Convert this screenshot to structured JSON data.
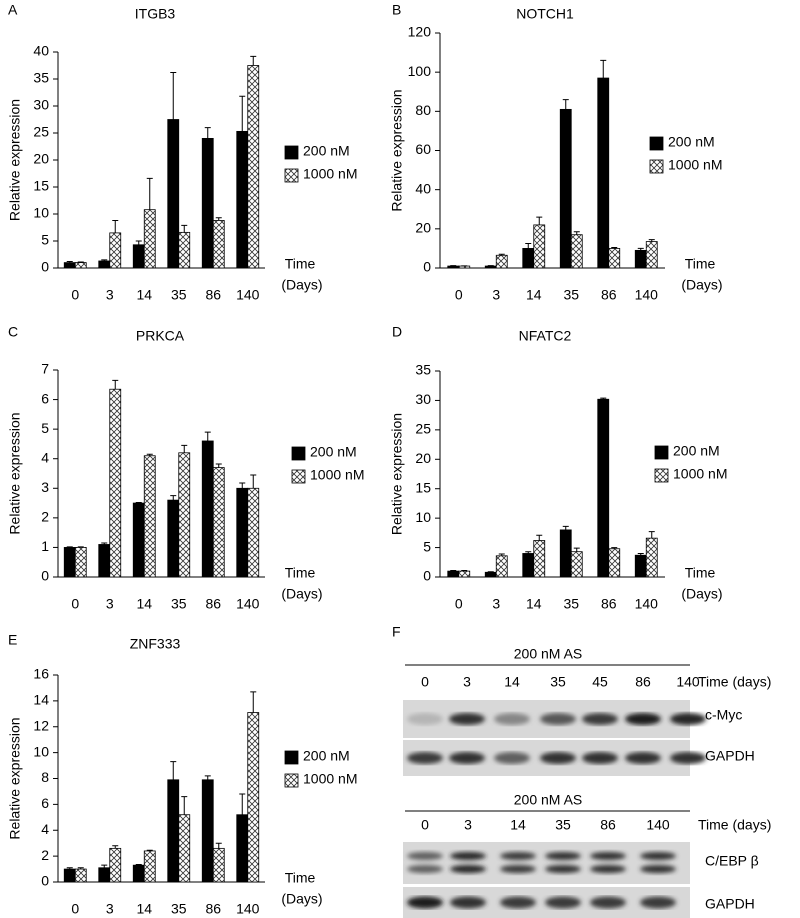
{
  "chart_data": [
    {
      "type": "bar",
      "panel": "A",
      "title": "ITGB3",
      "ylabel": "Relative expression",
      "xlabel": [
        "Time",
        "(Days)"
      ],
      "categories": [
        "0",
        "3",
        "14",
        "35",
        "86",
        "140"
      ],
      "series": [
        {
          "name": "200 nM",
          "color": "#000000",
          "values": [
            1.0,
            1.3,
            4.3,
            27.5,
            24.0,
            25.3
          ],
          "errors": [
            0.2,
            0.2,
            0.7,
            8.7,
            2.0,
            6.5
          ]
        },
        {
          "name": "1000 nM",
          "color": "#ffffff",
          "pattern": "crosshatch",
          "values": [
            1.0,
            6.5,
            10.8,
            6.6,
            8.8,
            37.5
          ],
          "errors": [
            0.1,
            2.3,
            5.8,
            1.3,
            0.5,
            1.7
          ]
        }
      ],
      "ylim": [
        0,
        40
      ],
      "yticks": [
        0,
        5,
        10,
        15,
        20,
        25,
        30,
        35,
        40
      ],
      "legend": "right"
    },
    {
      "type": "bar",
      "panel": "B",
      "title": "NOTCH1",
      "ylabel": "Relative expression",
      "xlabel": [
        "Time",
        "(Days)"
      ],
      "categories": [
        "0",
        "3",
        "14",
        "35",
        "86",
        "140"
      ],
      "series": [
        {
          "name": "200 nM",
          "color": "#000000",
          "values": [
            1,
            1,
            10,
            81,
            97,
            9
          ],
          "errors": [
            0.2,
            0.2,
            2.5,
            5,
            9,
            1
          ]
        },
        {
          "name": "1000 nM",
          "color": "#ffffff",
          "pattern": "crosshatch",
          "values": [
            1,
            6.5,
            22,
            17,
            10,
            13.5
          ],
          "errors": [
            0.1,
            0.5,
            4,
            1.5,
            0.5,
            1
          ]
        }
      ],
      "ylim": [
        0,
        120
      ],
      "yticks": [
        0,
        20,
        40,
        60,
        80,
        100,
        120
      ],
      "legend": "right"
    },
    {
      "type": "bar",
      "panel": "C",
      "title": "PRKCA",
      "ylabel": "Relative expression",
      "xlabel": [
        "Time",
        "(Days)"
      ],
      "categories": [
        "0",
        "3",
        "14",
        "35",
        "86",
        "140"
      ],
      "series": [
        {
          "name": "200 nM",
          "color": "#000000",
          "values": [
            1.0,
            1.1,
            2.5,
            2.6,
            4.6,
            3.0
          ],
          "errors": [
            0.02,
            0.05,
            0.02,
            0.15,
            0.3,
            0.18
          ]
        },
        {
          "name": "1000 nM",
          "color": "#ffffff",
          "pattern": "crosshatch",
          "values": [
            1.0,
            6.35,
            4.1,
            4.2,
            3.7,
            3.0
          ],
          "errors": [
            0.02,
            0.3,
            0.05,
            0.25,
            0.12,
            0.45
          ]
        }
      ],
      "ylim": [
        0,
        7
      ],
      "yticks": [
        0,
        1,
        2,
        3,
        4,
        5,
        6,
        7
      ],
      "legend": "right"
    },
    {
      "type": "bar",
      "panel": "D",
      "title": "NFATC2",
      "ylabel": "Relative expression",
      "xlabel": [
        "Time",
        "(Days)"
      ],
      "categories": [
        "0",
        "3",
        "14",
        "35",
        "86",
        "140"
      ],
      "series": [
        {
          "name": "200 nM",
          "color": "#000000",
          "values": [
            1.0,
            0.8,
            4.0,
            8.0,
            30.2,
            3.7
          ],
          "errors": [
            0.1,
            0.1,
            0.3,
            0.6,
            0.2,
            0.3
          ]
        },
        {
          "name": "1000 nM",
          "color": "#ffffff",
          "pattern": "crosshatch",
          "values": [
            1.0,
            3.6,
            6.2,
            4.3,
            4.8,
            6.6
          ],
          "errors": [
            0.1,
            0.3,
            0.9,
            0.6,
            0.2,
            1.1
          ]
        }
      ],
      "ylim": [
        0,
        35
      ],
      "yticks": [
        0,
        5,
        10,
        15,
        20,
        25,
        30,
        35
      ],
      "legend": "right"
    },
    {
      "type": "bar",
      "panel": "E",
      "title": "ZNF333",
      "ylabel": "Relative expression",
      "xlabel": [
        "Time",
        "(Days)"
      ],
      "categories": [
        "0",
        "3",
        "14",
        "35",
        "86",
        "140"
      ],
      "series": [
        {
          "name": "200 nM",
          "color": "#000000",
          "values": [
            1.0,
            1.1,
            1.3,
            7.9,
            7.9,
            5.2
          ],
          "errors": [
            0.1,
            0.2,
            0.05,
            1.4,
            0.3,
            1.6
          ]
        },
        {
          "name": "1000 nM",
          "color": "#ffffff",
          "pattern": "crosshatch",
          "values": [
            1.0,
            2.6,
            2.4,
            5.2,
            2.6,
            13.1
          ],
          "errors": [
            0.1,
            0.2,
            0.05,
            1.4,
            0.4,
            1.6
          ]
        }
      ],
      "ylim": [
        0,
        16
      ],
      "yticks": [
        0,
        2,
        4,
        6,
        8,
        10,
        12,
        14,
        16
      ],
      "legend": "right"
    }
  ],
  "blot": {
    "panel": "F",
    "sections": [
      {
        "header": "200 nM AS",
        "lanes": [
          "0",
          "3",
          "14",
          "35",
          "45",
          "86",
          "140"
        ],
        "time_label": "Time (days)",
        "rows": [
          "c-Myc",
          "GAPDH"
        ]
      },
      {
        "header": "200 nM AS",
        "lanes": [
          "0",
          "3",
          "14",
          "35",
          "86",
          "140"
        ],
        "time_label": "Time (days)",
        "rows": [
          "C/EBP β",
          "GAPDH"
        ]
      }
    ]
  }
}
